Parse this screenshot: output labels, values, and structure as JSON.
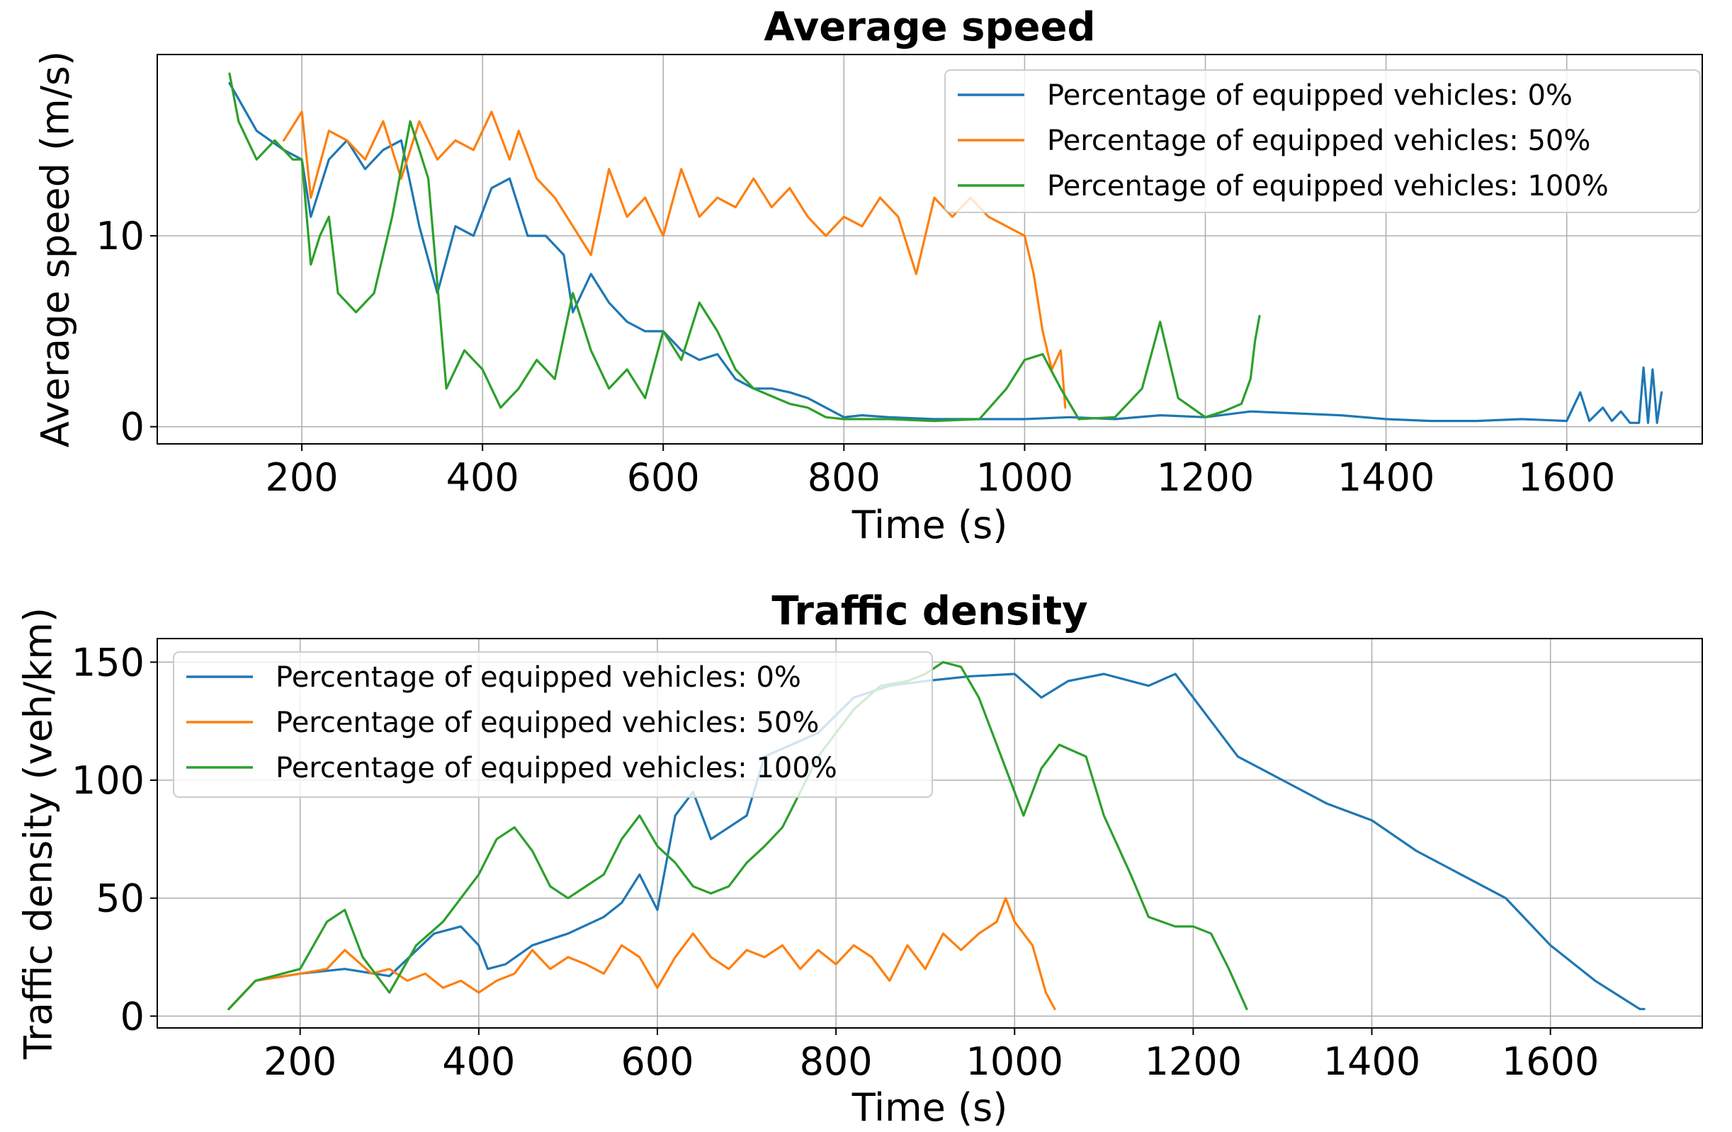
{
  "chart_data": [
    {
      "type": "line",
      "title": "Average speed",
      "xlabel": "Time (s)",
      "ylabel": "Average speed (m/s)",
      "xlim": [
        40,
        1750
      ],
      "ylim": [
        -0.9,
        19.5
      ],
      "xticks": [
        200,
        400,
        600,
        800,
        1000,
        1200,
        1400,
        1600
      ],
      "yticks": [
        0,
        10
      ],
      "grid": true,
      "legend_position": "top-right",
      "series": [
        {
          "name": "Percentage of equipped vehicles: 0%",
          "color": "#1f77b4",
          "x": [
            120,
            150,
            180,
            200,
            210,
            230,
            250,
            270,
            290,
            310,
            330,
            350,
            370,
            390,
            410,
            430,
            450,
            470,
            490,
            500,
            520,
            540,
            560,
            580,
            600,
            620,
            640,
            660,
            680,
            700,
            720,
            740,
            760,
            780,
            800,
            820,
            850,
            900,
            950,
            1000,
            1050,
            1100,
            1150,
            1200,
            1250,
            1300,
            1350,
            1400,
            1450,
            1500,
            1550,
            1600,
            1615,
            1625,
            1640,
            1650,
            1660,
            1670,
            1680,
            1685,
            1690,
            1695,
            1700,
            1705
          ],
          "y": [
            18,
            15.5,
            14.5,
            14,
            11,
            14,
            15,
            13.5,
            14.5,
            15,
            10.5,
            7,
            10.5,
            10,
            12.5,
            13,
            10,
            10,
            9,
            6,
            8,
            6.5,
            5.5,
            5,
            5,
            4,
            3.5,
            3.8,
            2.5,
            2,
            2,
            1.8,
            1.5,
            1,
            0.5,
            0.6,
            0.5,
            0.4,
            0.4,
            0.4,
            0.5,
            0.4,
            0.6,
            0.5,
            0.8,
            0.7,
            0.6,
            0.4,
            0.3,
            0.3,
            0.4,
            0.3,
            1.8,
            0.3,
            1,
            0.3,
            0.8,
            0.2,
            0.2,
            3.1,
            0.2,
            3.0,
            0.2,
            1.8
          ]
        },
        {
          "name": "Percentage of equipped vehicles: 50%",
          "color": "#ff7f0e",
          "x": [
            180,
            200,
            210,
            230,
            250,
            270,
            290,
            310,
            330,
            350,
            370,
            390,
            410,
            430,
            440,
            460,
            480,
            500,
            520,
            540,
            560,
            580,
            600,
            620,
            640,
            660,
            680,
            700,
            720,
            740,
            760,
            780,
            800,
            820,
            840,
            860,
            880,
            900,
            920,
            940,
            960,
            980,
            1000,
            1010,
            1020,
            1030,
            1040,
            1045
          ],
          "y": [
            15,
            16.5,
            12,
            15.5,
            15,
            14,
            16,
            13,
            16,
            14,
            15,
            14.5,
            16.5,
            14,
            15.5,
            13,
            12,
            10.5,
            9,
            13.5,
            11,
            12,
            10,
            13.5,
            11,
            12,
            11.5,
            13,
            11.5,
            12.5,
            11,
            10,
            11,
            10.5,
            12,
            11,
            8,
            12,
            11,
            12,
            11,
            10.5,
            10,
            8,
            5,
            3,
            4,
            1
          ]
        },
        {
          "name": "Percentage of equipped vehicles: 100%",
          "color": "#2ca02c",
          "x": [
            120,
            130,
            150,
            170,
            190,
            200,
            210,
            220,
            230,
            240,
            260,
            280,
            300,
            320,
            340,
            360,
            380,
            400,
            420,
            440,
            460,
            480,
            500,
            520,
            540,
            560,
            580,
            600,
            620,
            640,
            660,
            680,
            700,
            720,
            740,
            760,
            780,
            800,
            850,
            900,
            950,
            980,
            1000,
            1020,
            1040,
            1060,
            1100,
            1130,
            1150,
            1170,
            1200,
            1220,
            1240,
            1250,
            1255,
            1260
          ],
          "y": [
            18.5,
            16,
            14,
            15,
            14,
            14,
            8.5,
            10,
            11,
            7,
            6,
            7,
            11,
            16,
            13,
            2,
            4,
            3,
            1,
            2,
            3.5,
            2.5,
            7,
            4,
            2,
            3,
            1.5,
            5,
            3.5,
            6.5,
            5,
            3,
            2,
            1.6,
            1.2,
            1.0,
            0.5,
            0.4,
            0.4,
            0.3,
            0.4,
            2,
            3.5,
            3.8,
            2,
            0.4,
            0.5,
            2,
            5.5,
            1.5,
            0.5,
            0.8,
            1.2,
            2.5,
            4.5,
            5.8
          ]
        }
      ]
    },
    {
      "type": "line",
      "title": "Traffic density",
      "xlabel": "Time (s)",
      "ylabel": "Traffic density (veh/km)",
      "xlim": [
        40,
        1770
      ],
      "ylim": [
        -5,
        160
      ],
      "xticks": [
        200,
        400,
        600,
        800,
        1000,
        1200,
        1400,
        1600
      ],
      "yticks": [
        0,
        50,
        100,
        150
      ],
      "grid": true,
      "legend_position": "top-left",
      "series": [
        {
          "name": "Percentage of equipped vehicles: 0%",
          "color": "#1f77b4",
          "x": [
            120,
            150,
            200,
            250,
            300,
            350,
            380,
            400,
            410,
            430,
            460,
            500,
            540,
            560,
            580,
            600,
            620,
            640,
            660,
            700,
            720,
            750,
            780,
            820,
            860,
            900,
            950,
            1000,
            1030,
            1060,
            1100,
            1150,
            1180,
            1220,
            1250,
            1300,
            1350,
            1400,
            1450,
            1500,
            1550,
            1600,
            1650,
            1700,
            1705
          ],
          "y": [
            3,
            15,
            18,
            20,
            17,
            35,
            38,
            30,
            20,
            22,
            30,
            35,
            42,
            48,
            60,
            45,
            85,
            95,
            75,
            85,
            110,
            115,
            120,
            135,
            140,
            142,
            144,
            145,
            135,
            142,
            145,
            140,
            145,
            125,
            110,
            100,
            90,
            83,
            70,
            60,
            50,
            30,
            15,
            3,
            3
          ]
        },
        {
          "name": "Percentage of equipped vehicles: 50%",
          "color": "#ff7f0e",
          "x": [
            120,
            150,
            200,
            230,
            250,
            280,
            300,
            320,
            340,
            360,
            380,
            400,
            420,
            440,
            460,
            480,
            500,
            520,
            540,
            560,
            580,
            600,
            620,
            640,
            660,
            680,
            700,
            720,
            740,
            760,
            780,
            800,
            820,
            840,
            860,
            880,
            900,
            920,
            940,
            960,
            980,
            990,
            1000,
            1020,
            1035,
            1045
          ],
          "y": [
            3,
            15,
            18,
            20,
            28,
            18,
            20,
            15,
            18,
            12,
            15,
            10,
            15,
            18,
            28,
            20,
            25,
            22,
            18,
            30,
            25,
            12,
            25,
            35,
            25,
            20,
            28,
            25,
            30,
            20,
            28,
            22,
            30,
            25,
            15,
            30,
            20,
            35,
            28,
            35,
            40,
            50,
            40,
            30,
            10,
            3
          ]
        },
        {
          "name": "Percentage of equipped vehicles: 100%",
          "color": "#2ca02c",
          "x": [
            120,
            150,
            200,
            230,
            250,
            270,
            300,
            330,
            360,
            400,
            420,
            440,
            460,
            480,
            500,
            520,
            540,
            560,
            580,
            600,
            620,
            640,
            660,
            680,
            700,
            720,
            740,
            760,
            780,
            800,
            820,
            850,
            880,
            900,
            920,
            940,
            960,
            980,
            1000,
            1010,
            1030,
            1050,
            1080,
            1100,
            1130,
            1150,
            1180,
            1200,
            1220,
            1240,
            1260
          ],
          "y": [
            3,
            15,
            20,
            40,
            45,
            25,
            10,
            30,
            40,
            60,
            75,
            80,
            70,
            55,
            50,
            55,
            60,
            75,
            85,
            72,
            65,
            55,
            52,
            55,
            65,
            72,
            80,
            95,
            110,
            120,
            130,
            140,
            142,
            145,
            150,
            148,
            135,
            115,
            95,
            85,
            105,
            115,
            110,
            85,
            60,
            42,
            38,
            38,
            35,
            20,
            3
          ]
        }
      ]
    }
  ]
}
